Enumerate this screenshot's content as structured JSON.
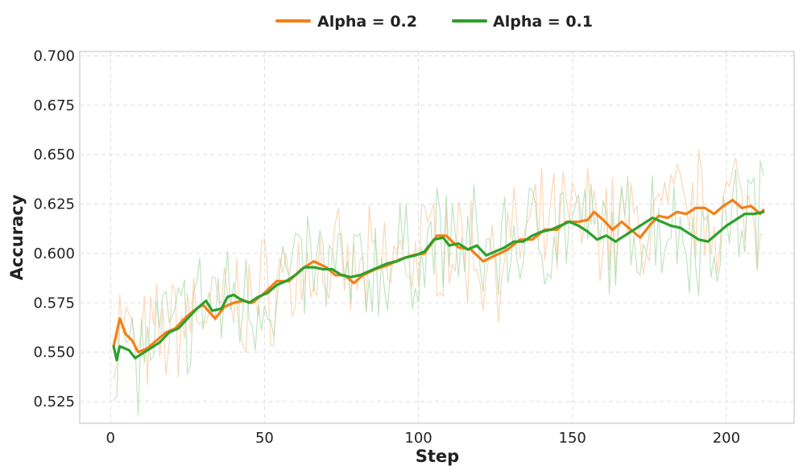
{
  "chart_data": {
    "type": "line",
    "title": "",
    "xlabel": "Step",
    "ylabel": "Accuracy",
    "xlim": [
      -10,
      222
    ],
    "ylim": [
      0.514,
      0.7022
    ],
    "xticks": [
      0,
      50,
      100,
      150,
      200
    ],
    "yticks": [
      0.525,
      0.55,
      0.575,
      0.6,
      0.625,
      0.65,
      0.675,
      0.7
    ],
    "ytick_labels": [
      "0.525",
      "0.550",
      "0.575",
      "0.600",
      "0.625",
      "0.650",
      "0.675",
      "0.700"
    ],
    "grid": true,
    "legend_position": "top-center",
    "x_start": 1,
    "x_end": 212,
    "series": [
      {
        "name": "Alpha = 0.2",
        "color": "#f47f17",
        "raw_color": "#f9c79a",
        "smoothed_anchors": [
          [
            1,
            0.553
          ],
          [
            3,
            0.567
          ],
          [
            5,
            0.559
          ],
          [
            7,
            0.556
          ],
          [
            9,
            0.55
          ],
          [
            12,
            0.552
          ],
          [
            15,
            0.556
          ],
          [
            18,
            0.56
          ],
          [
            21,
            0.562
          ],
          [
            24,
            0.567
          ],
          [
            27,
            0.571
          ],
          [
            30,
            0.574
          ],
          [
            34,
            0.567
          ],
          [
            37,
            0.573
          ],
          [
            40,
            0.575
          ],
          [
            43,
            0.576
          ],
          [
            46,
            0.575
          ],
          [
            50,
            0.58
          ],
          [
            54,
            0.586
          ],
          [
            58,
            0.586
          ],
          [
            62,
            0.592
          ],
          [
            66,
            0.596
          ],
          [
            70,
            0.593
          ],
          [
            73,
            0.589
          ],
          [
            76,
            0.589
          ],
          [
            79,
            0.585
          ],
          [
            82,
            0.589
          ],
          [
            86,
            0.592
          ],
          [
            90,
            0.594
          ],
          [
            94,
            0.597
          ],
          [
            98,
            0.599
          ],
          [
            102,
            0.6
          ],
          [
            106,
            0.609
          ],
          [
            109,
            0.609
          ],
          [
            113,
            0.603
          ],
          [
            117,
            0.602
          ],
          [
            121,
            0.596
          ],
          [
            125,
            0.599
          ],
          [
            129,
            0.602
          ],
          [
            133,
            0.607
          ],
          [
            137,
            0.607
          ],
          [
            141,
            0.612
          ],
          [
            145,
            0.612
          ],
          [
            148,
            0.616
          ],
          [
            152,
            0.616
          ],
          [
            155,
            0.617
          ],
          [
            157,
            0.621
          ],
          [
            160,
            0.617
          ],
          [
            163,
            0.612
          ],
          [
            166,
            0.616
          ],
          [
            169,
            0.612
          ],
          [
            172,
            0.608
          ],
          [
            175,
            0.614
          ],
          [
            178,
            0.619
          ],
          [
            181,
            0.618
          ],
          [
            184,
            0.621
          ],
          [
            187,
            0.62
          ],
          [
            190,
            0.623
          ],
          [
            193,
            0.623
          ],
          [
            196,
            0.62
          ],
          [
            199,
            0.624
          ],
          [
            202,
            0.627
          ],
          [
            205,
            0.623
          ],
          [
            208,
            0.624
          ],
          [
            211,
            0.62
          ],
          [
            212,
            0.622
          ]
        ]
      },
      {
        "name": "Alpha = 0.1",
        "color": "#2ca02c",
        "raw_color": "#a8d8a8",
        "smoothed_anchors": [
          [
            1,
            0.553
          ],
          [
            2,
            0.546
          ],
          [
            3,
            0.553
          ],
          [
            6,
            0.551
          ],
          [
            8,
            0.547
          ],
          [
            10,
            0.549
          ],
          [
            13,
            0.552
          ],
          [
            16,
            0.555
          ],
          [
            19,
            0.56
          ],
          [
            22,
            0.562
          ],
          [
            25,
            0.567
          ],
          [
            28,
            0.572
          ],
          [
            31,
            0.576
          ],
          [
            33,
            0.571
          ],
          [
            36,
            0.572
          ],
          [
            38,
            0.578
          ],
          [
            40,
            0.579
          ],
          [
            42,
            0.577
          ],
          [
            45,
            0.575
          ],
          [
            48,
            0.578
          ],
          [
            51,
            0.58
          ],
          [
            54,
            0.584
          ],
          [
            57,
            0.586
          ],
          [
            60,
            0.589
          ],
          [
            63,
            0.593
          ],
          [
            66,
            0.593
          ],
          [
            69,
            0.592
          ],
          [
            72,
            0.592
          ],
          [
            75,
            0.589
          ],
          [
            78,
            0.588
          ],
          [
            81,
            0.589
          ],
          [
            84,
            0.591
          ],
          [
            87,
            0.593
          ],
          [
            90,
            0.595
          ],
          [
            93,
            0.596
          ],
          [
            96,
            0.598
          ],
          [
            99,
            0.599
          ],
          [
            102,
            0.601
          ],
          [
            105,
            0.607
          ],
          [
            108,
            0.608
          ],
          [
            110,
            0.604
          ],
          [
            113,
            0.605
          ],
          [
            116,
            0.602
          ],
          [
            119,
            0.604
          ],
          [
            122,
            0.599
          ],
          [
            125,
            0.601
          ],
          [
            128,
            0.603
          ],
          [
            131,
            0.606
          ],
          [
            134,
            0.606
          ],
          [
            137,
            0.609
          ],
          [
            140,
            0.611
          ],
          [
            143,
            0.612
          ],
          [
            146,
            0.614
          ],
          [
            149,
            0.616
          ],
          [
            152,
            0.614
          ],
          [
            155,
            0.611
          ],
          [
            158,
            0.607
          ],
          [
            161,
            0.609
          ],
          [
            164,
            0.606
          ],
          [
            167,
            0.609
          ],
          [
            170,
            0.612
          ],
          [
            173,
            0.615
          ],
          [
            176,
            0.618
          ],
          [
            179,
            0.616
          ],
          [
            182,
            0.614
          ],
          [
            185,
            0.613
          ],
          [
            188,
            0.61
          ],
          [
            191,
            0.607
          ],
          [
            194,
            0.606
          ],
          [
            197,
            0.61
          ],
          [
            200,
            0.614
          ],
          [
            203,
            0.617
          ],
          [
            206,
            0.62
          ],
          [
            209,
            0.62
          ],
          [
            212,
            0.621
          ]
        ]
      }
    ]
  }
}
